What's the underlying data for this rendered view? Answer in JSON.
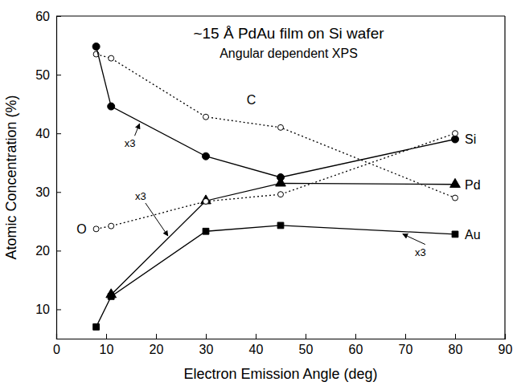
{
  "chart_data": {
    "type": "line",
    "title": "~15 Å PdAu film on Si wafer",
    "subtitle": "Angular dependent XPS",
    "x_label": "Electron Emission Angle (deg)",
    "y_label": "Atomic Concentration (%)",
    "x": [
      8,
      11,
      30,
      45,
      80
    ],
    "series": [
      {
        "name": "C",
        "color": "#000000",
        "marker": "circle-open",
        "line_style": "dotted",
        "values": [
          53.5,
          52.8,
          42.8,
          41.0,
          29.0
        ]
      },
      {
        "name": "Si",
        "color": "#000000",
        "marker": "circle",
        "line_style": "solid",
        "values": [
          54.8,
          44.6,
          36.1,
          32.5,
          39.0
        ]
      },
      {
        "name": "Pd",
        "color": "#000000",
        "marker": "triangle",
        "line_style": "solid",
        "values": [
          null,
          12.5,
          28.5,
          31.5,
          31.3
        ]
      },
      {
        "name": "O",
        "color": "#000000",
        "marker": "circle-open",
        "line_style": "dotted",
        "values": [
          23.7,
          24.2,
          28.4,
          29.6,
          40.0
        ]
      },
      {
        "name": "Au",
        "color": "#000000",
        "marker": "square",
        "line_style": "solid",
        "values": [
          7.0,
          12.2,
          23.3,
          24.3,
          22.8
        ]
      }
    ],
    "annotations": [
      "x3",
      "x3",
      "x3"
    ],
    "xlim": [
      0,
      90
    ],
    "xticks": [
      0,
      10,
      20,
      30,
      40,
      50,
      60,
      70,
      80,
      90
    ],
    "ylim": [
      5,
      60
    ],
    "yticks": [
      10,
      20,
      30,
      40,
      50,
      60
    ],
    "grid": false
  }
}
